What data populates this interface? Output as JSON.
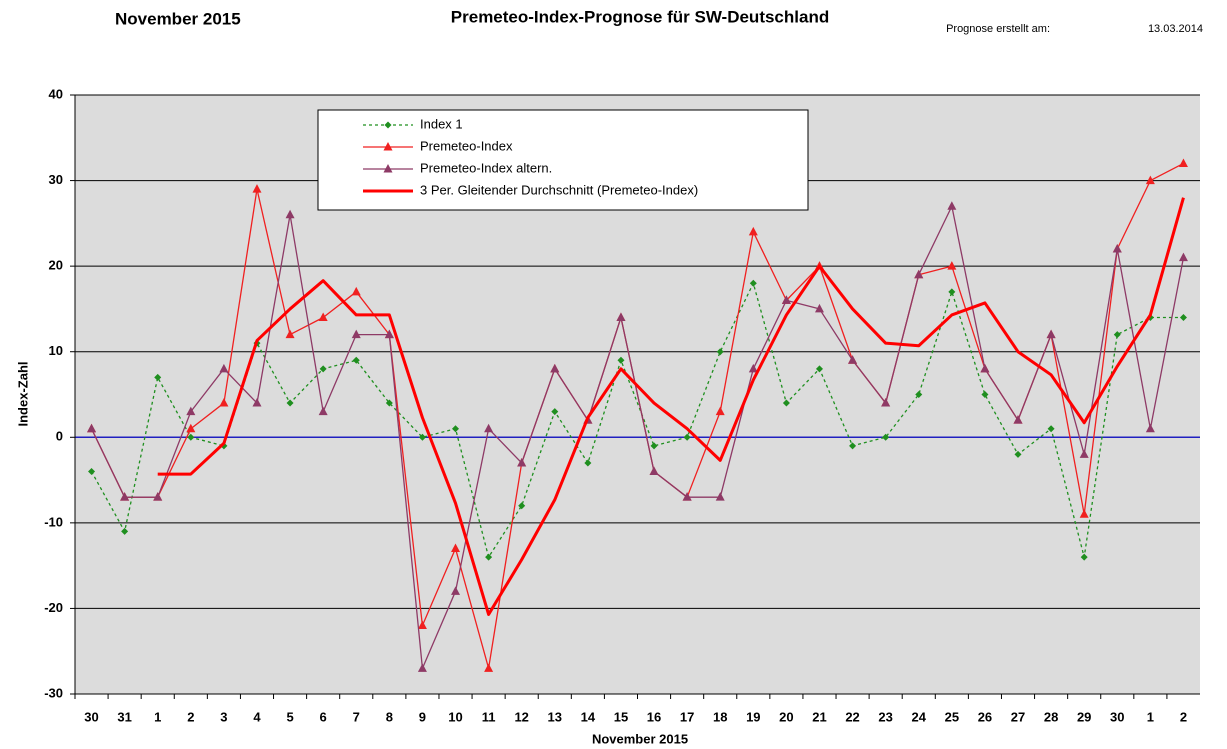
{
  "chart_data": {
    "type": "line",
    "header_left": "November 2015",
    "title": "Premeteo-Index-Prognose für SW-Deutschland",
    "note_label": "Prognose erstellt am:",
    "note_date": "13.03.2014",
    "y_label": "Index-Zahl",
    "x_label": "November 2015",
    "categories": [
      "30",
      "31",
      "1",
      "2",
      "3",
      "4",
      "5",
      "6",
      "7",
      "8",
      "9",
      "10",
      "11",
      "12",
      "13",
      "14",
      "15",
      "16",
      "17",
      "18",
      "19",
      "20",
      "21",
      "22",
      "23",
      "24",
      "25",
      "26",
      "27",
      "28",
      "29",
      "30",
      "1",
      "2"
    ],
    "ylim": [
      -30,
      40
    ],
    "yticks": [
      -30,
      -20,
      -10,
      0,
      10,
      20,
      30,
      40
    ],
    "grid": true,
    "grid_color": "#000000",
    "zero_line_color": "#2020c0",
    "plot_background": "#dcdcdc",
    "series": [
      {
        "name": "Index 1",
        "color": "#1f8f1f",
        "marker": "diamond",
        "dash": true,
        "width": 1.3,
        "values": [
          -4,
          -11,
          7,
          0,
          -1,
          11,
          4,
          8,
          9,
          4,
          0,
          1,
          -14,
          -8,
          3,
          -3,
          9,
          -1,
          0,
          10,
          18,
          4,
          8,
          -1,
          0,
          5,
          17,
          5,
          -2,
          1,
          -14,
          12,
          14,
          14
        ]
      },
      {
        "name": "Premeteo-Index",
        "color": "#f02020",
        "marker": "triangle",
        "dash": false,
        "width": 1.3,
        "values": [
          1,
          -7,
          -7,
          1,
          4,
          29,
          12,
          14,
          17,
          12,
          -22,
          -13,
          -27,
          -3,
          8,
          2,
          14,
          -4,
          -7,
          3,
          24,
          16,
          20,
          9,
          4,
          19,
          20,
          8,
          2,
          12,
          -9,
          22,
          30,
          32
        ]
      },
      {
        "name": "Premeteo-Index altern.",
        "color": "#8e3a66",
        "marker": "triangle",
        "dash": false,
        "width": 1.3,
        "values": [
          1,
          -7,
          -7,
          3,
          8,
          4,
          26,
          3,
          12,
          12,
          -27,
          -18,
          1,
          -3,
          8,
          2,
          14,
          -4,
          -7,
          -7,
          8,
          16,
          15,
          9,
          4,
          19,
          27,
          8,
          2,
          12,
          -2,
          22,
          1,
          21
        ]
      },
      {
        "name": "3 Per. Gleitender Durchschnitt (Premeteo-Index)",
        "color": "#ff0000",
        "marker": "none",
        "dash": false,
        "width": 3,
        "values": [
          null,
          null,
          -4.3,
          -4.3,
          -0.7,
          11.3,
          15,
          18.3,
          14.3,
          14.3,
          2.3,
          -7.7,
          -20.7,
          -14.3,
          -7.3,
          2.3,
          8,
          4,
          1,
          -2.7,
          6.7,
          14.3,
          20,
          15,
          11,
          10.7,
          14.3,
          15.7,
          10,
          7.3,
          1.7,
          8.3,
          14.3,
          28
        ]
      }
    ]
  }
}
